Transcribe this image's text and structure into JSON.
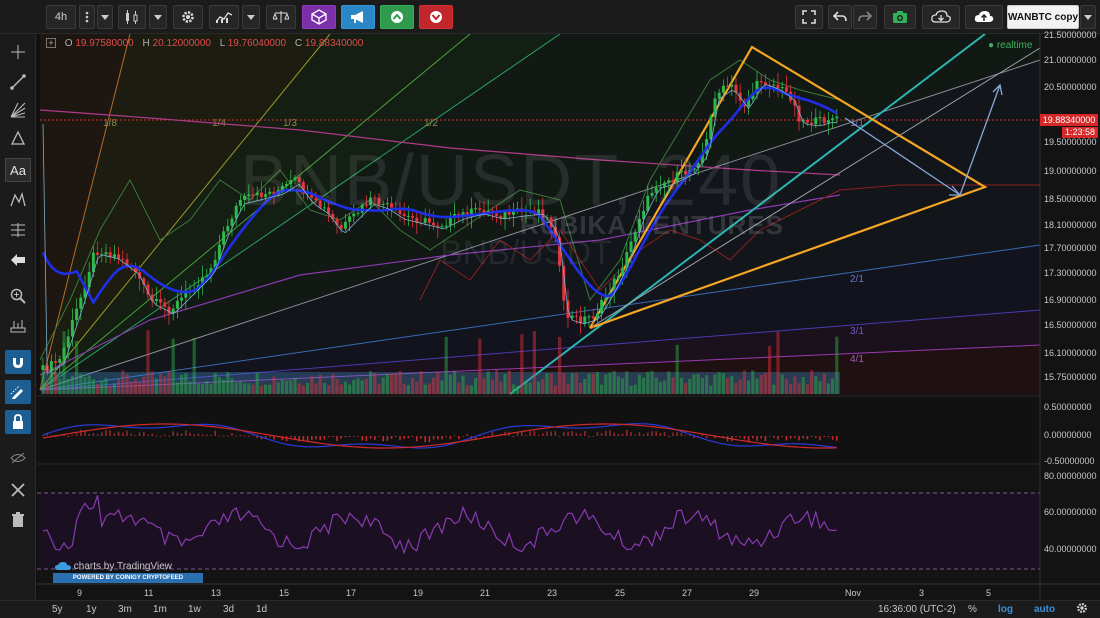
{
  "toolbar": {
    "interval": "4h",
    "symbol_compare": "WANBTC copy"
  },
  "legend": {
    "open_label": "O",
    "open": "19.97580000",
    "high_label": "H",
    "high": "20.12000000",
    "low_label": "L",
    "low": "19.76040000",
    "close_label": "C",
    "close": "19.88340000"
  },
  "chart": {
    "realtime_label": "realtime",
    "watermark_symbol": "BNB/USDT, 240",
    "watermark_brand": "RUBIKA VENTURES",
    "watermark_pair": "BNB/USDT",
    "current_price": "19.88340000",
    "countdown": "1:23:58",
    "fib_labels": [
      "1/8",
      "1/4",
      "1/3",
      "1/2",
      "1/1",
      "2/1",
      "3/1",
      "4/1"
    ],
    "price_axis": [
      "21.50000000",
      "21.00000000",
      "20.50000000",
      "19.50000000",
      "19.00000000",
      "18.50000000",
      "18.10000000",
      "17.70000000",
      "17.30000000",
      "16.90000000",
      "16.50000000",
      "16.10000000",
      "15.75000000"
    ],
    "macd_axis": [
      "0.50000000",
      "0.00000000",
      "-0.50000000"
    ],
    "rsi_axis": [
      "80.00000000",
      "60.00000000",
      "40.00000000"
    ],
    "time_axis": [
      "9",
      "11",
      "13",
      "15",
      "17",
      "19",
      "21",
      "23",
      "25",
      "27",
      "29",
      "Nov",
      "3",
      "5"
    ],
    "credit": "charts by TradingView",
    "powered": "POWERED BY COINIGY CRYPTOFEED"
  },
  "bottom": {
    "ranges": [
      "5y",
      "1y",
      "3m",
      "1m",
      "1w",
      "3d",
      "1d"
    ],
    "clock": "16:36:00 (UTC-2)",
    "percent": "%",
    "log": "log",
    "auto": "auto"
  },
  "colors": {
    "bull": "#2db84a",
    "bear": "#e8323c",
    "ma": "#1f2ee8",
    "triangle": "#f5a623",
    "trend": "#2bb5b0",
    "accent": "#3b8fd9"
  }
}
